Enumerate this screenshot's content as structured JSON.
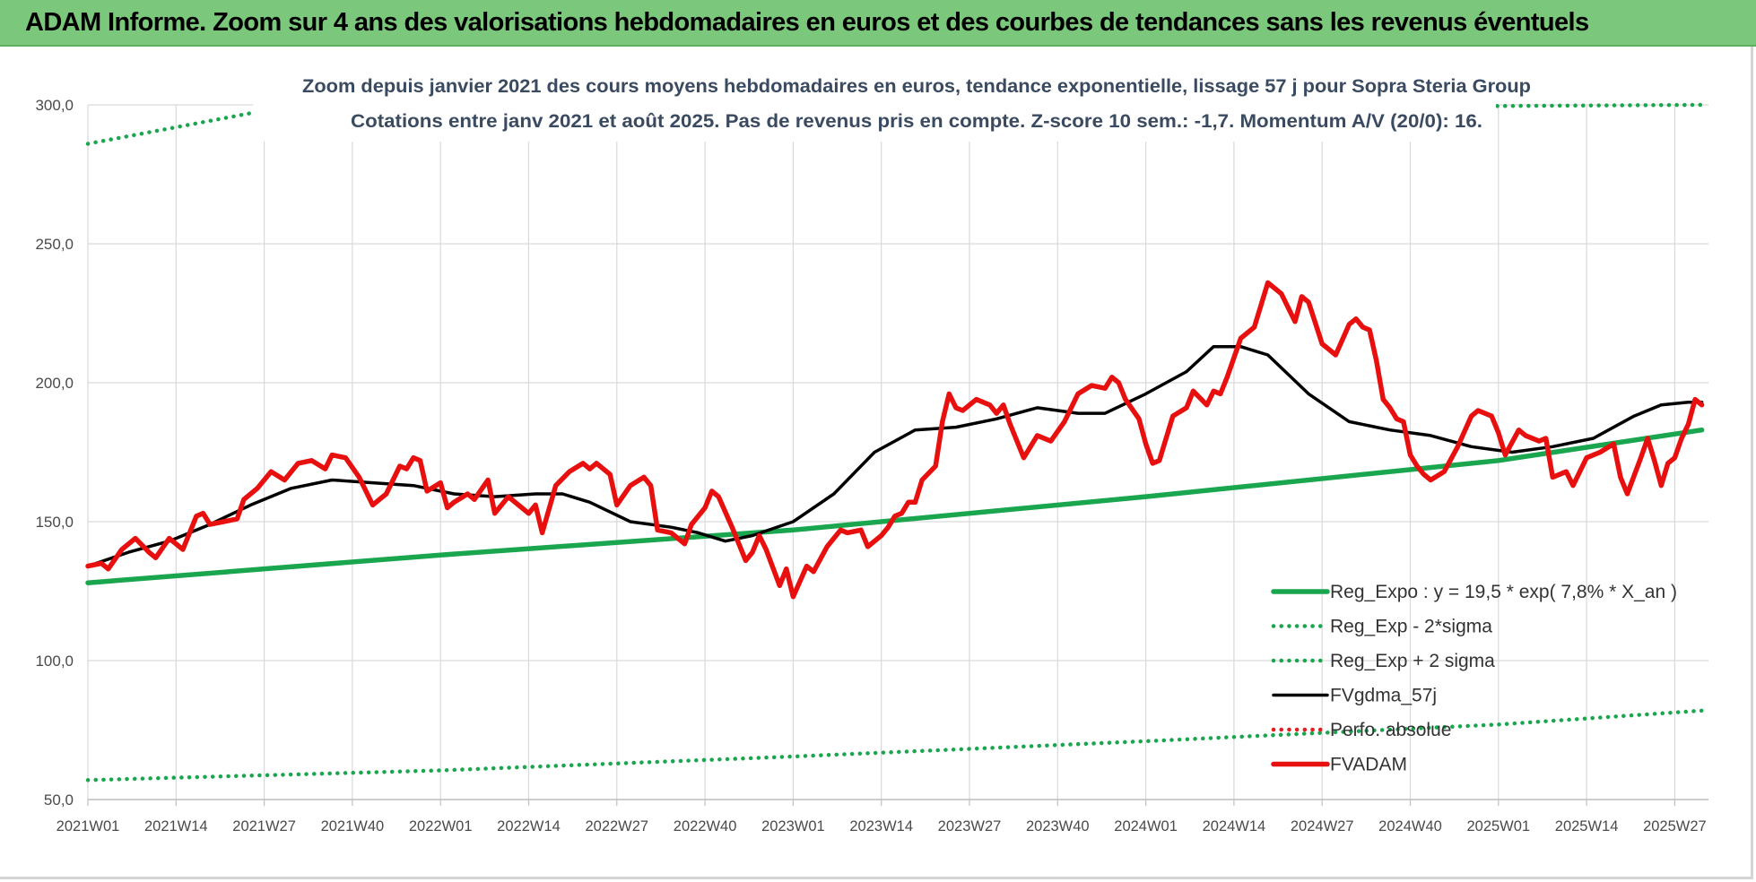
{
  "banner": {
    "title": "ADAM Informe. Zoom sur 4 ans des valorisations hebdomadaires en euros et des courbes de tendances sans les revenus éventuels"
  },
  "chart_data": {
    "type": "line",
    "title_line1": "Zoom depuis janvier 2021 des cours moyens hebdomadaires en euros, tendance exponentielle, lissage 57 j pour Sopra Steria Group",
    "title_line2": "Cotations entre janv 2021 et août 2025.  Pas de revenus pris en compte. Z-score 10 sem.: -1,7. Momentum A/V (20/0): 16.",
    "ylim": [
      50,
      300
    ],
    "y_ticks": [
      "50,0",
      "100,0",
      "150,0",
      "200,0",
      "250,0",
      "300,0"
    ],
    "x_ticks": [
      "2021W01",
      "2021W14",
      "2021W27",
      "2021W40",
      "2022W01",
      "2022W14",
      "2022W27",
      "2022W40",
      "2023W01",
      "2023W14",
      "2023W27",
      "2023W40",
      "2024W01",
      "2024W14",
      "2024W27",
      "2024W40",
      "2025W01",
      "2025W14",
      "2025W27"
    ],
    "grid": "vertical and horizontal",
    "legend_position": "bottom-right",
    "series": [
      {
        "name": "Reg_Expo : y = 19,5 * exp( 7,8% *  X_an )",
        "color": "#1aa64f",
        "style": "solid-thick",
        "anchors": [
          [
            0,
            128
          ],
          [
            52,
            138
          ],
          [
            104,
            147
          ],
          [
            156,
            159
          ],
          [
            208,
            172
          ],
          [
            238,
            183
          ]
        ]
      },
      {
        "name": "Reg_Exp - 2*sigma",
        "color": "#1aa64f",
        "style": "dotted",
        "anchors": [
          [
            0,
            57
          ],
          [
            52,
            60.5
          ],
          [
            104,
            65.5
          ],
          [
            156,
            71
          ],
          [
            208,
            77
          ],
          [
            238,
            82
          ]
        ]
      },
      {
        "name": "Reg_Exp + 2 sigma",
        "color": "#1aa64f",
        "style": "dotted",
        "anchors": [
          [
            0,
            286
          ],
          [
            24,
            297
          ],
          [
            238,
            300
          ]
        ]
      },
      {
        "name": "FVgdma_57j",
        "color": "#000000",
        "style": "solid",
        "anchors": [
          [
            0,
            134
          ],
          [
            6,
            139
          ],
          [
            12,
            143
          ],
          [
            18,
            149
          ],
          [
            24,
            156
          ],
          [
            30,
            162
          ],
          [
            36,
            165
          ],
          [
            42,
            164
          ],
          [
            48,
            163
          ],
          [
            54,
            160
          ],
          [
            60,
            159
          ],
          [
            66,
            160
          ],
          [
            70,
            160
          ],
          [
            74,
            157
          ],
          [
            80,
            150
          ],
          [
            86,
            148
          ],
          [
            90,
            146
          ],
          [
            94,
            143
          ],
          [
            98,
            145
          ],
          [
            104,
            150
          ],
          [
            110,
            160
          ],
          [
            116,
            175
          ],
          [
            122,
            183
          ],
          [
            128,
            184
          ],
          [
            134,
            187
          ],
          [
            140,
            191
          ],
          [
            146,
            189
          ],
          [
            150,
            189
          ],
          [
            156,
            196
          ],
          [
            162,
            204
          ],
          [
            166,
            213
          ],
          [
            170,
            213
          ],
          [
            174,
            210
          ],
          [
            180,
            196
          ],
          [
            186,
            186
          ],
          [
            192,
            183
          ],
          [
            198,
            181
          ],
          [
            204,
            177
          ],
          [
            210,
            175
          ],
          [
            216,
            177
          ],
          [
            222,
            180
          ],
          [
            228,
            188
          ],
          [
            232,
            192
          ],
          [
            236,
            193
          ],
          [
            238,
            193
          ]
        ]
      },
      {
        "name": "Perfo. absolue",
        "color": "#e41f1f",
        "style": "dotted",
        "anchors": []
      },
      {
        "name": "FVADAM",
        "color": "#e8100f",
        "style": "solid-thick",
        "anchors": [
          [
            0,
            134
          ],
          [
            2,
            135
          ],
          [
            3,
            133
          ],
          [
            5,
            140
          ],
          [
            7,
            144
          ],
          [
            9,
            139
          ],
          [
            10,
            137
          ],
          [
            12,
            144
          ],
          [
            14,
            140
          ],
          [
            16,
            152
          ],
          [
            17,
            153
          ],
          [
            18,
            149
          ],
          [
            20,
            150
          ],
          [
            22,
            151
          ],
          [
            23,
            158
          ],
          [
            25,
            162
          ],
          [
            27,
            168
          ],
          [
            29,
            165
          ],
          [
            31,
            171
          ],
          [
            33,
            172
          ],
          [
            35,
            169
          ],
          [
            36,
            174
          ],
          [
            38,
            173
          ],
          [
            40,
            166
          ],
          [
            42,
            156
          ],
          [
            44,
            160
          ],
          [
            46,
            170
          ],
          [
            47,
            169
          ],
          [
            48,
            173
          ],
          [
            49,
            172
          ],
          [
            50,
            161
          ],
          [
            52,
            164
          ],
          [
            53,
            155
          ],
          [
            54,
            157
          ],
          [
            56,
            160
          ],
          [
            57,
            158
          ],
          [
            59,
            165
          ],
          [
            60,
            153
          ],
          [
            62,
            159
          ],
          [
            64,
            155
          ],
          [
            65,
            153
          ],
          [
            66,
            156
          ],
          [
            67,
            146
          ],
          [
            69,
            163
          ],
          [
            71,
            168
          ],
          [
            73,
            171
          ],
          [
            74,
            169
          ],
          [
            75,
            171
          ],
          [
            77,
            167
          ],
          [
            78,
            156
          ],
          [
            80,
            163
          ],
          [
            82,
            166
          ],
          [
            83,
            163
          ],
          [
            84,
            147
          ],
          [
            86,
            146
          ],
          [
            88,
            142
          ],
          [
            89,
            149
          ],
          [
            91,
            155
          ],
          [
            92,
            161
          ],
          [
            93,
            159
          ],
          [
            95,
            148
          ],
          [
            97,
            136
          ],
          [
            98,
            139
          ],
          [
            99,
            145
          ],
          [
            100,
            140
          ],
          [
            102,
            127
          ],
          [
            103,
            133
          ],
          [
            104,
            123
          ],
          [
            106,
            134
          ],
          [
            107,
            132
          ],
          [
            109,
            141
          ],
          [
            111,
            147
          ],
          [
            112,
            146
          ],
          [
            114,
            147
          ],
          [
            115,
            141
          ],
          [
            117,
            145
          ],
          [
            118,
            148
          ],
          [
            119,
            152
          ],
          [
            120,
            153
          ],
          [
            121,
            157
          ],
          [
            122,
            157
          ],
          [
            123,
            165
          ],
          [
            125,
            170
          ],
          [
            126,
            186
          ],
          [
            127,
            196
          ],
          [
            128,
            191
          ],
          [
            129,
            190
          ],
          [
            131,
            194
          ],
          [
            133,
            192
          ],
          [
            134,
            189
          ],
          [
            135,
            192
          ],
          [
            136,
            185
          ],
          [
            138,
            173
          ],
          [
            140,
            181
          ],
          [
            142,
            179
          ],
          [
            144,
            186
          ],
          [
            146,
            196
          ],
          [
            148,
            199
          ],
          [
            150,
            198
          ],
          [
            151,
            202
          ],
          [
            152,
            200
          ],
          [
            153,
            194
          ],
          [
            155,
            187
          ],
          [
            156,
            178
          ],
          [
            157,
            171
          ],
          [
            158,
            172
          ],
          [
            160,
            188
          ],
          [
            162,
            191
          ],
          [
            163,
            197
          ],
          [
            165,
            192
          ],
          [
            166,
            197
          ],
          [
            167,
            196
          ],
          [
            168,
            202
          ],
          [
            170,
            216
          ],
          [
            172,
            220
          ],
          [
            174,
            236
          ],
          [
            176,
            232
          ],
          [
            178,
            222
          ],
          [
            179,
            231
          ],
          [
            180,
            229
          ],
          [
            182,
            214
          ],
          [
            183,
            212
          ],
          [
            184,
            210
          ],
          [
            186,
            221
          ],
          [
            187,
            223
          ],
          [
            188,
            220
          ],
          [
            189,
            219
          ],
          [
            190,
            208
          ],
          [
            191,
            194
          ],
          [
            192,
            191
          ],
          [
            193,
            187
          ],
          [
            194,
            186
          ],
          [
            195,
            174
          ],
          [
            196,
            170
          ],
          [
            197,
            167
          ],
          [
            198,
            165
          ],
          [
            200,
            168
          ],
          [
            202,
            177
          ],
          [
            204,
            188
          ],
          [
            205,
            190
          ],
          [
            207,
            188
          ],
          [
            208,
            182
          ],
          [
            209,
            174
          ],
          [
            211,
            183
          ],
          [
            212,
            181
          ],
          [
            214,
            179
          ],
          [
            215,
            180
          ],
          [
            216,
            166
          ],
          [
            218,
            168
          ],
          [
            219,
            163
          ],
          [
            221,
            173
          ],
          [
            223,
            175
          ],
          [
            225,
            178
          ],
          [
            226,
            166
          ],
          [
            227,
            160
          ],
          [
            229,
            173
          ],
          [
            230,
            180
          ],
          [
            231,
            172
          ],
          [
            232,
            163
          ],
          [
            233,
            171
          ],
          [
            234,
            173
          ],
          [
            235,
            180
          ],
          [
            236,
            185
          ],
          [
            237,
            194
          ],
          [
            238,
            192
          ]
        ]
      }
    ]
  }
}
